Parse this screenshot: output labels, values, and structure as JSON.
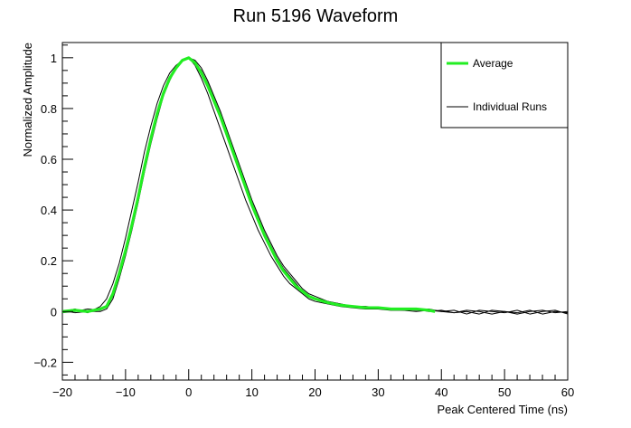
{
  "chart_data": {
    "type": "line",
    "title": "Run 5196 Waveform",
    "xlabel": "Peak Centered Time (ns)",
    "ylabel": "Normalized Amplitude",
    "xlim": [
      -20,
      60
    ],
    "ylim": [
      -0.27,
      1.06
    ],
    "x_ticks": [
      -20,
      -10,
      0,
      10,
      20,
      30,
      40,
      50,
      60
    ],
    "x_tick_labels": [
      "−20",
      "−10",
      "0",
      "10",
      "20",
      "30",
      "40",
      "50",
      "60"
    ],
    "y_ticks": [
      -0.2,
      0,
      0.2,
      0.4,
      0.6,
      0.8,
      1
    ],
    "y_tick_labels": [
      "−0.2",
      "0",
      "0.2",
      "0.4",
      "0.6",
      "0.8",
      "1"
    ],
    "grid": false,
    "legend_position": "top-right",
    "legend": [
      {
        "label": "Average",
        "color": "#22ee22"
      },
      {
        "label": "Individual Runs",
        "color": "#000000"
      }
    ],
    "series": [
      {
        "name": "Average",
        "color": "#22ee22",
        "x": [
          -20,
          -18,
          -16,
          -14,
          -13,
          -12,
          -11,
          -10,
          -9,
          -8,
          -7,
          -6,
          -5,
          -4,
          -3,
          -2,
          -1,
          0,
          1,
          2,
          3,
          4,
          5,
          6,
          7,
          8,
          9,
          10,
          11,
          12,
          13,
          14,
          15,
          16,
          17,
          18,
          19,
          20,
          22,
          24,
          26,
          28,
          30,
          32,
          34,
          36,
          38,
          39
        ],
        "y": [
          0.0,
          0.005,
          0.0,
          0.01,
          0.02,
          0.07,
          0.15,
          0.24,
          0.34,
          0.45,
          0.57,
          0.68,
          0.78,
          0.86,
          0.92,
          0.96,
          0.99,
          1.0,
          0.98,
          0.94,
          0.89,
          0.83,
          0.77,
          0.7,
          0.63,
          0.56,
          0.49,
          0.42,
          0.36,
          0.3,
          0.25,
          0.2,
          0.16,
          0.13,
          0.1,
          0.08,
          0.06,
          0.05,
          0.035,
          0.025,
          0.02,
          0.015,
          0.015,
          0.01,
          0.01,
          0.01,
          0.005,
          0.0
        ]
      },
      {
        "name": "Individual Runs",
        "color": "#000000",
        "x": [
          -20,
          -18,
          -16,
          -14,
          -13,
          -12,
          -11,
          -10,
          -9,
          -8,
          -7,
          -6,
          -5,
          -4,
          -3,
          -2,
          -1,
          0,
          1,
          2,
          3,
          4,
          5,
          6,
          7,
          8,
          9,
          10,
          11,
          12,
          13,
          14,
          15,
          16,
          17,
          18,
          19,
          20,
          22,
          24,
          26,
          28,
          30,
          32,
          34,
          36,
          38,
          40,
          42,
          44,
          46,
          48,
          50,
          52,
          54,
          56,
          58,
          60
        ],
        "y": [
          0.0,
          0.01,
          -0.005,
          0.02,
          0.05,
          0.11,
          0.19,
          0.29,
          0.4,
          0.51,
          0.63,
          0.73,
          0.82,
          0.89,
          0.94,
          0.97,
          0.99,
          1.0,
          0.97,
          0.92,
          0.86,
          0.79,
          0.72,
          0.65,
          0.58,
          0.51,
          0.44,
          0.38,
          0.32,
          0.27,
          0.22,
          0.18,
          0.14,
          0.11,
          0.09,
          0.07,
          0.05,
          0.04,
          0.03,
          0.02,
          0.015,
          0.01,
          0.01,
          0.005,
          0.005,
          0.0,
          0.005,
          0.0,
          -0.005,
          0.005,
          0.0,
          -0.01,
          0.0,
          -0.005,
          0.005,
          -0.01,
          0.0,
          -0.005
        ]
      },
      {
        "name": "Individual Runs",
        "color": "#000000",
        "x": [
          -20,
          -18,
          -16,
          -14,
          -13,
          -12,
          -11,
          -10,
          -9,
          -8,
          -7,
          -6,
          -5,
          -4,
          -3,
          -2,
          -1,
          0,
          1,
          2,
          3,
          4,
          5,
          6,
          7,
          8,
          9,
          10,
          11,
          12,
          13,
          14,
          15,
          16,
          17,
          18,
          19,
          20,
          22,
          24,
          26,
          28,
          30,
          32,
          34,
          36,
          38,
          40,
          42,
          44,
          46,
          48,
          50,
          52,
          54,
          56,
          58,
          60
        ],
        "y": [
          0.005,
          -0.005,
          0.0,
          0.0,
          0.01,
          0.05,
          0.13,
          0.22,
          0.32,
          0.43,
          0.55,
          0.66,
          0.76,
          0.85,
          0.91,
          0.96,
          0.99,
          1.0,
          0.99,
          0.96,
          0.91,
          0.85,
          0.79,
          0.72,
          0.65,
          0.58,
          0.51,
          0.44,
          0.38,
          0.32,
          0.27,
          0.22,
          0.18,
          0.15,
          0.12,
          0.09,
          0.07,
          0.06,
          0.04,
          0.03,
          0.02,
          0.02,
          0.015,
          0.01,
          0.01,
          0.005,
          0.01,
          0.0,
          0.005,
          -0.01,
          0.005,
          0.0,
          -0.005,
          0.005,
          -0.01,
          0.0,
          0.005,
          -0.01
        ]
      },
      {
        "name": "Individual Runs",
        "color": "#000000",
        "x": [
          -20,
          -18,
          -16,
          -14,
          -13,
          -12,
          -11,
          -10,
          -9,
          -8,
          -7,
          -6,
          -5,
          -4,
          -3,
          -2,
          -1,
          0,
          1,
          2,
          3,
          4,
          5,
          6,
          7,
          8,
          9,
          10,
          11,
          12,
          13,
          14,
          15,
          16,
          17,
          18,
          19,
          20,
          22,
          24,
          26,
          28,
          30,
          32,
          34,
          36,
          38,
          40,
          42,
          44,
          46,
          48,
          50,
          52,
          54,
          56,
          58,
          60
        ],
        "y": [
          -0.005,
          0.0,
          0.01,
          0.005,
          0.02,
          0.06,
          0.14,
          0.23,
          0.33,
          0.44,
          0.56,
          0.67,
          0.77,
          0.85,
          0.92,
          0.96,
          0.99,
          1.0,
          0.98,
          0.95,
          0.9,
          0.84,
          0.78,
          0.71,
          0.64,
          0.57,
          0.5,
          0.43,
          0.37,
          0.31,
          0.26,
          0.21,
          0.17,
          0.14,
          0.11,
          0.08,
          0.06,
          0.05,
          0.04,
          0.03,
          0.02,
          0.015,
          0.01,
          0.01,
          0.005,
          0.01,
          0.0,
          0.005,
          -0.005,
          0.0,
          -0.01,
          0.005,
          0.0,
          -0.01,
          0.0,
          0.005,
          -0.005,
          0.0
        ]
      }
    ]
  }
}
